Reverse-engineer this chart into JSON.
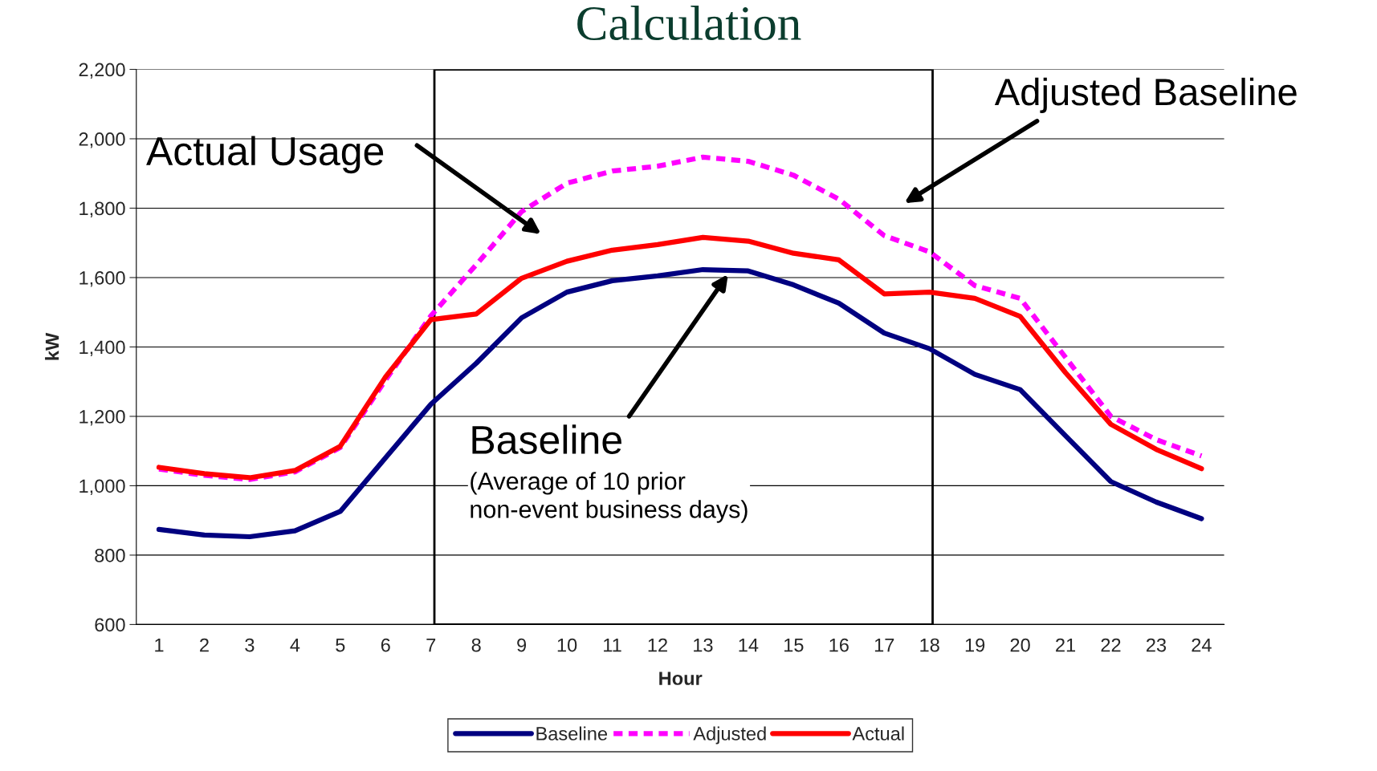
{
  "chart_data": {
    "type": "line",
    "title": "Calculation",
    "xlabel": "Hour",
    "ylabel": "kW",
    "categories": [
      "1",
      "2",
      "3",
      "4",
      "5",
      "6",
      "7",
      "8",
      "9",
      "10",
      "11",
      "12",
      "13",
      "14",
      "15",
      "16",
      "17",
      "18",
      "19",
      "20",
      "21",
      "22",
      "23",
      "24"
    ],
    "series": [
      {
        "name": "Baseline",
        "color": "#000080",
        "line_style": "solid",
        "values": [
          874,
          858,
          853,
          870,
          926,
          1081,
          1235,
          1353,
          1484,
          1558,
          1591,
          1605,
          1623,
          1619,
          1579,
          1526,
          1440,
          1395,
          1321,
          1277,
          1144,
          1012,
          953,
          905
        ]
      },
      {
        "name": "Adjusted",
        "color": "#ff00ff",
        "line_style": "dashed",
        "values": [
          1048,
          1030,
          1018,
          1040,
          1110,
          1305,
          1490,
          1637,
          1790,
          1872,
          1907,
          1921,
          1947,
          1935,
          1895,
          1826,
          1721,
          1674,
          1577,
          1540,
          1370,
          1200,
          1133,
          1086
        ]
      },
      {
        "name": "Actual",
        "color": "#ff0000",
        "line_style": "solid",
        "values": [
          1053,
          1035,
          1023,
          1044,
          1114,
          1314,
          1479,
          1495,
          1598,
          1647,
          1679,
          1695,
          1716,
          1705,
          1670,
          1651,
          1553,
          1558,
          1540,
          1488,
          1326,
          1177,
          1105,
          1049
        ]
      }
    ],
    "ylim": [
      600,
      2200
    ],
    "yticks": [
      600,
      800,
      {
        "value": 1000,
        "label": "1,000"
      },
      {
        "value": 1200,
        "label": "1,200"
      },
      {
        "value": 1400,
        "label": "1,400"
      },
      {
        "value": 1600,
        "label": "1,600"
      },
      {
        "value": 1800,
        "label": "1,800"
      },
      {
        "value": 2000,
        "label": "2,000"
      },
      {
        "value": 2200,
        "label": "2,200"
      }
    ],
    "annotations": [
      "Actual Usage",
      "Adjusted Baseline",
      "Baseline",
      "(Average of 10 prior\nnon-event business days)"
    ],
    "grid": "y",
    "legend": "bottom",
    "marker": "none"
  }
}
